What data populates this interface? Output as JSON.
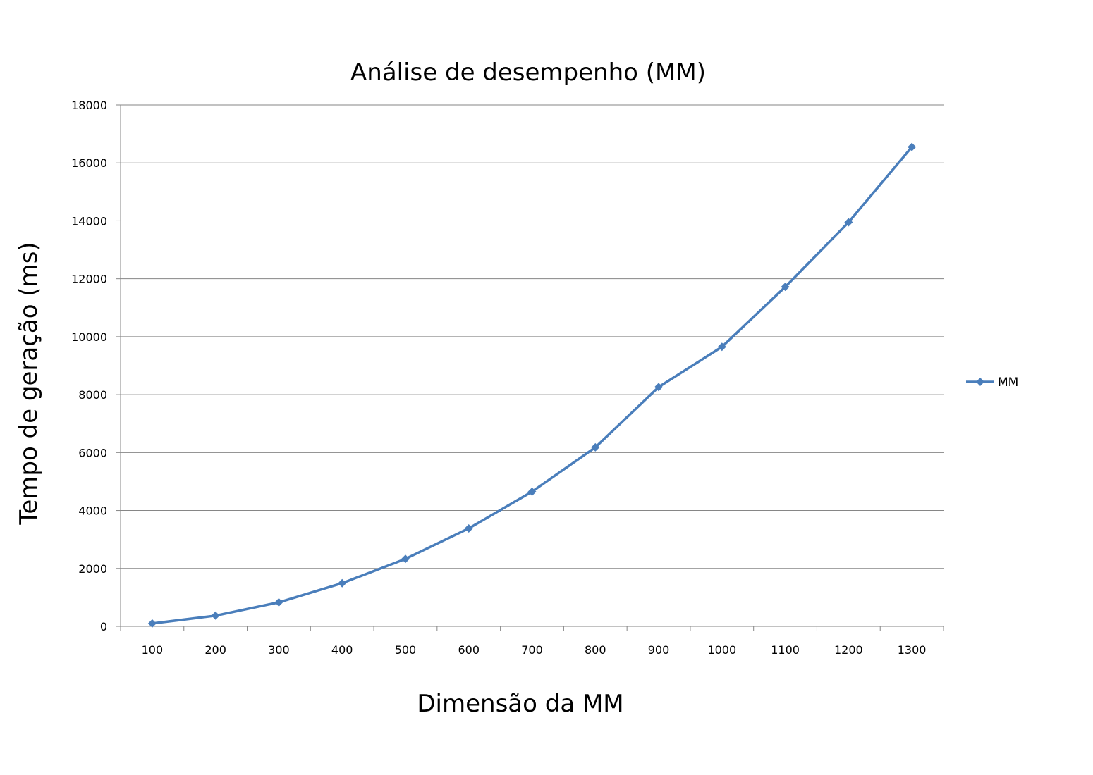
{
  "chart_data": {
    "type": "line",
    "title": "Análise de desempenho (MM)",
    "xlabel": "Dimensão da MM",
    "ylabel": "Tempo de geração (ms)",
    "categories": [
      "100",
      "200",
      "300",
      "400",
      "500",
      "600",
      "700",
      "800",
      "900",
      "1000",
      "1100",
      "1200",
      "1300"
    ],
    "series": [
      {
        "name": "MM",
        "color": "#4a7ebb",
        "values": [
          100,
          370,
          830,
          1490,
          2330,
          3380,
          4650,
          6180,
          8260,
          9650,
          11720,
          13950,
          16550
        ]
      }
    ],
    "ylim": [
      0,
      18000
    ],
    "yticks": [
      "0",
      "2000",
      "4000",
      "6000",
      "8000",
      "10000",
      "12000",
      "14000",
      "16000",
      "18000"
    ],
    "grid": "horizontal",
    "legend": "right",
    "marker": "diamond"
  }
}
